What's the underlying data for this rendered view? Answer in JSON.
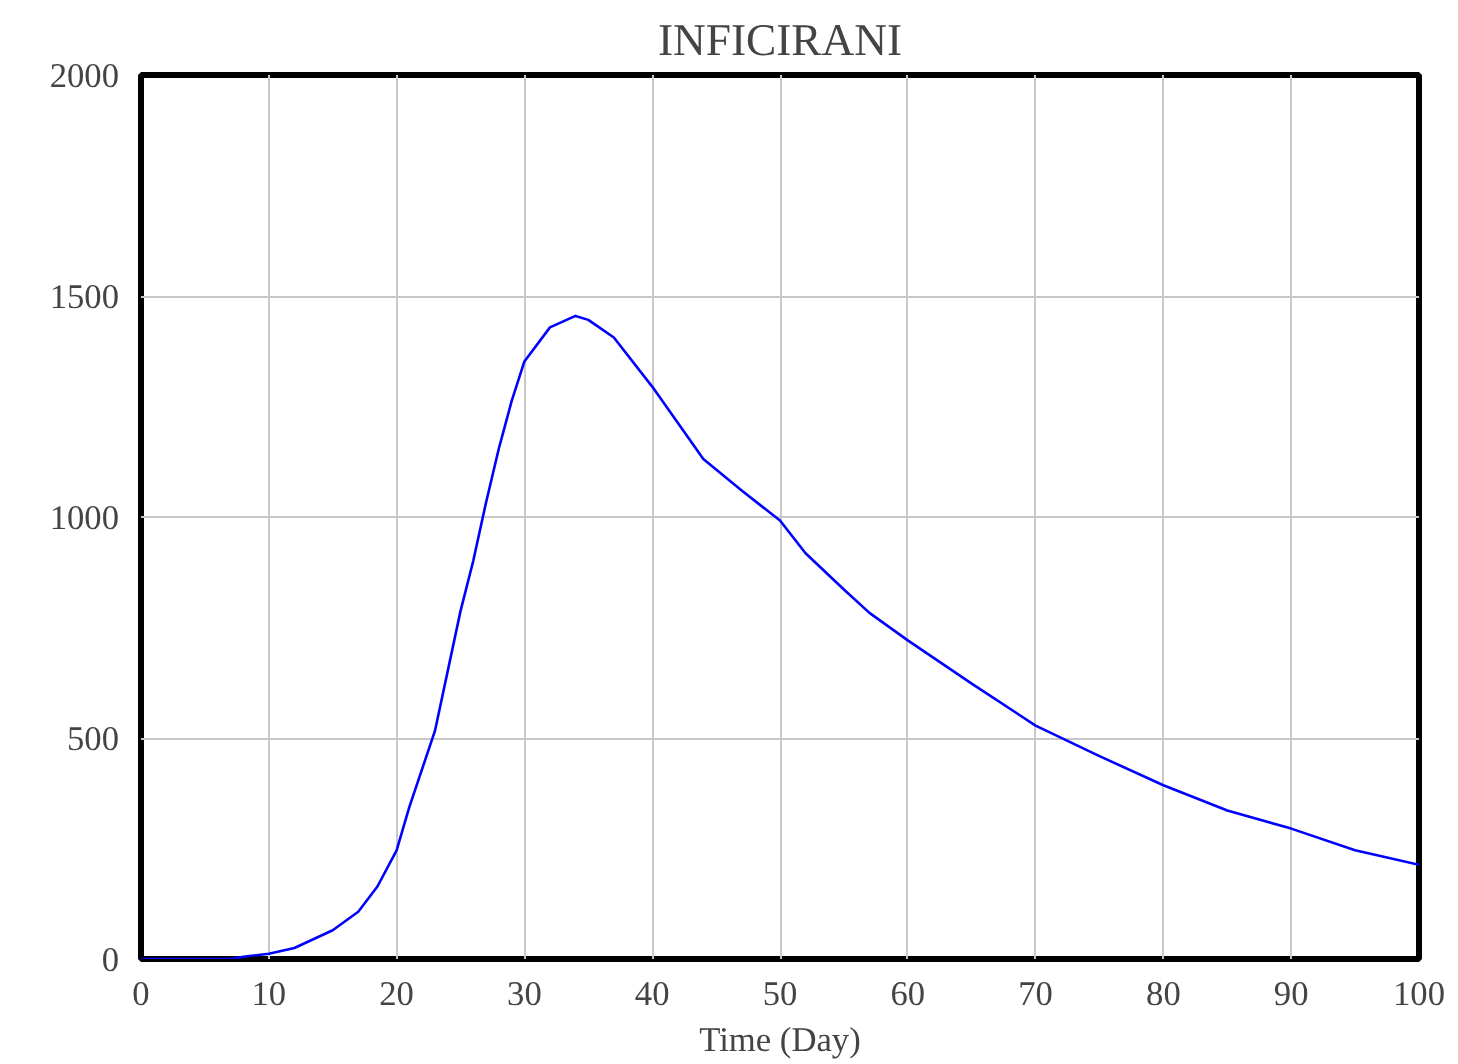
{
  "chart_data": {
    "type": "line",
    "title": "INFICIRANI",
    "xlabel": "Time (Day)",
    "x": [
      0,
      7,
      8,
      10,
      12,
      15,
      17,
      18.5,
      20,
      21,
      23,
      25,
      26,
      27,
      28,
      29,
      30,
      32,
      34,
      35,
      37,
      40,
      42,
      44,
      47,
      50,
      52,
      55,
      57,
      60,
      65,
      70,
      75,
      80,
      85,
      90,
      95,
      100
    ],
    "series": [
      {
        "color": "#0000ff",
        "values": [
          0,
          0,
          5,
          12,
          25,
          65,
          107,
          164,
          246,
          344,
          516,
          787,
          901,
          1033,
          1155,
          1262,
          1352,
          1429,
          1455,
          1446,
          1406,
          1295,
          1213,
          1131,
          1060,
          992,
          918,
          836,
          783,
          721,
          623,
          528,
          459,
          393,
          336,
          295,
          246,
          213
        ]
      }
    ],
    "xlim": [
      0,
      100
    ],
    "ylim": [
      0,
      2000
    ],
    "xticks": [
      0,
      10,
      20,
      30,
      40,
      50,
      60,
      70,
      80,
      90,
      100
    ],
    "yticks": [
      0,
      500,
      1000,
      1500,
      2000
    ],
    "grid": true,
    "marker": "none",
    "line_style": "solid"
  }
}
